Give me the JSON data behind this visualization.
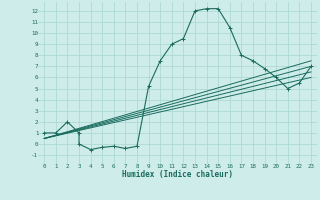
{
  "title": "",
  "xlabel": "Humidex (Indice chaleur)",
  "bg_color": "#ceecea",
  "grid_color": "#aed8d4",
  "line_color": "#1a6b5e",
  "x_ticks": [
    0,
    1,
    2,
    3,
    4,
    5,
    6,
    7,
    8,
    9,
    10,
    11,
    12,
    13,
    14,
    15,
    16,
    17,
    18,
    19,
    20,
    21,
    22,
    23
  ],
  "y_ticks": [
    -1,
    0,
    1,
    2,
    3,
    4,
    5,
    6,
    7,
    8,
    9,
    10,
    11,
    12
  ],
  "ylim": [
    -1.8,
    12.8
  ],
  "xlim": [
    -0.5,
    23.5
  ],
  "main_x": [
    0,
    1,
    2,
    3,
    3,
    4,
    5,
    6,
    7,
    8,
    9,
    10,
    11,
    12,
    13,
    14,
    15,
    16,
    17,
    18,
    19,
    20,
    21,
    22,
    23
  ],
  "main_y": [
    1,
    1,
    2,
    1,
    0,
    -0.5,
    -0.3,
    -0.2,
    -0.4,
    -0.2,
    5.2,
    7.5,
    9,
    9.5,
    12,
    12.2,
    12.2,
    10.5,
    8,
    7.5,
    6.8,
    6,
    5,
    5.5,
    7
  ],
  "line1_x": [
    0,
    23
  ],
  "line1_y": [
    0.5,
    6.0
  ],
  "line2_x": [
    0,
    23
  ],
  "line2_y": [
    0.5,
    6.5
  ],
  "line3_x": [
    0,
    23
  ],
  "line3_y": [
    0.5,
    7.0
  ],
  "line4_x": [
    0,
    23
  ],
  "line4_y": [
    0.5,
    7.5
  ]
}
